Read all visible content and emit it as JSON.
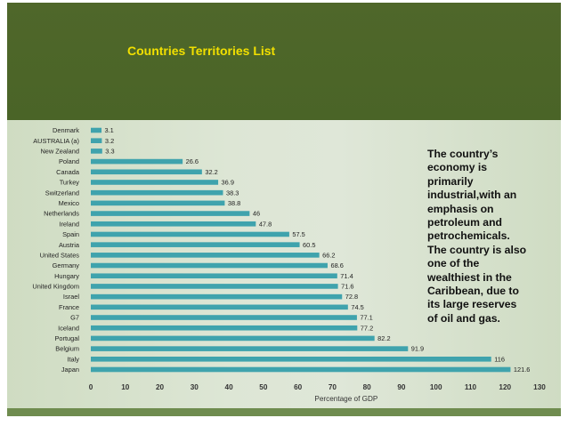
{
  "slide": {
    "title": "Countries Territories List",
    "callout": "The country’s\neconomy is\nprimarily\nindustrial,with an\nemphasis on\npetroleum and\npetrochemicals.\nThe country is also\none of the\nwealthiest in the\nCaribbean, due to\nits large reserves\nof oil and gas."
  },
  "colors": {
    "header": "#4f672a",
    "title": "#f2e000",
    "bar": "#3fa3ad",
    "panel": "#dde6d5"
  },
  "chart_data": {
    "type": "bar",
    "orientation": "horizontal",
    "categories": [
      "Denmark",
      "AUSTRALIA (a)",
      "New Zealand",
      "Poland",
      "Canada",
      "Turkey",
      "Switzerland",
      "Mexico",
      "Netherlands",
      "Ireland",
      "Spain",
      "Austria",
      "United States",
      "Germany",
      "Hungary",
      "United Kingdom",
      "Israel",
      "France",
      "G7",
      "Iceland",
      "Portugal",
      "Belgium",
      "Italy",
      "Japan"
    ],
    "values": [
      3.1,
      3.2,
      3.3,
      26.6,
      32.2,
      36.9,
      38.3,
      38.8,
      46,
      47.8,
      57.5,
      60.5,
      66.2,
      68.6,
      71.4,
      71.6,
      72.8,
      74.5,
      77.1,
      77.2,
      82.2,
      91.9,
      116,
      121.6
    ],
    "value_labels": [
      "3.1",
      "3.2",
      "3.3",
      "26.6",
      "32.2",
      "36.9",
      "38.3",
      "38.8",
      "46",
      "47.8",
      "57.5",
      "60.5",
      "66.2",
      "68.6",
      "71.4",
      "71.6",
      "72.8",
      "74.5",
      "77.1",
      "77.2",
      "82.2",
      "91.9",
      "116",
      "121.6"
    ],
    "xlabel": "Percentage of GDP",
    "xlim": [
      0,
      130
    ],
    "xticks": [
      "0",
      "10",
      "20",
      "30",
      "40",
      "50",
      "60",
      "70",
      "80",
      "90",
      "100",
      "110",
      "120",
      "130"
    ],
    "grid": false,
    "legend": "none"
  }
}
